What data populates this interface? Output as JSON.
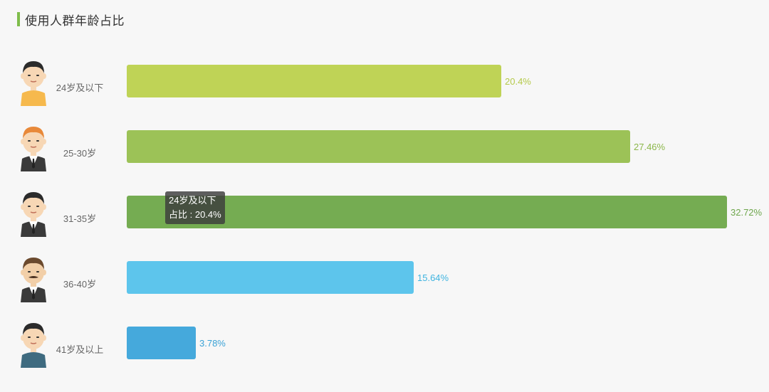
{
  "header": {
    "title": "使用人群年龄占比",
    "accent_color": "#7fbd4b"
  },
  "chart_data": {
    "type": "bar",
    "orientation": "horizontal",
    "title": "使用人群年龄占比",
    "categories": [
      "24岁及以下",
      "25-30岁",
      "31-35岁",
      "36-40岁",
      "41岁及以上"
    ],
    "values": [
      20.4,
      27.46,
      32.72,
      15.64,
      3.78
    ],
    "value_labels": [
      "20.4%",
      "27.46%",
      "32.72%",
      "15.64%",
      "3.78%"
    ],
    "unit": "%",
    "xlim": [
      0,
      32.72
    ],
    "colors": [
      "#bfd356",
      "#9cc257",
      "#75ac52",
      "#5dc5ec",
      "#45a9dc"
    ],
    "label_colors": [
      "#b5ca4a",
      "#8cb74a",
      "#6ea64c",
      "#3fb4e0",
      "#3aa2d6"
    ],
    "avatars": [
      "young-man-avatar",
      "red-haired-man-avatar",
      "suited-man-avatar",
      "mustache-man-avatar",
      "older-man-avatar"
    ]
  },
  "tooltip": {
    "category": "24岁及以下",
    "line": "占比 : 20.4%"
  }
}
